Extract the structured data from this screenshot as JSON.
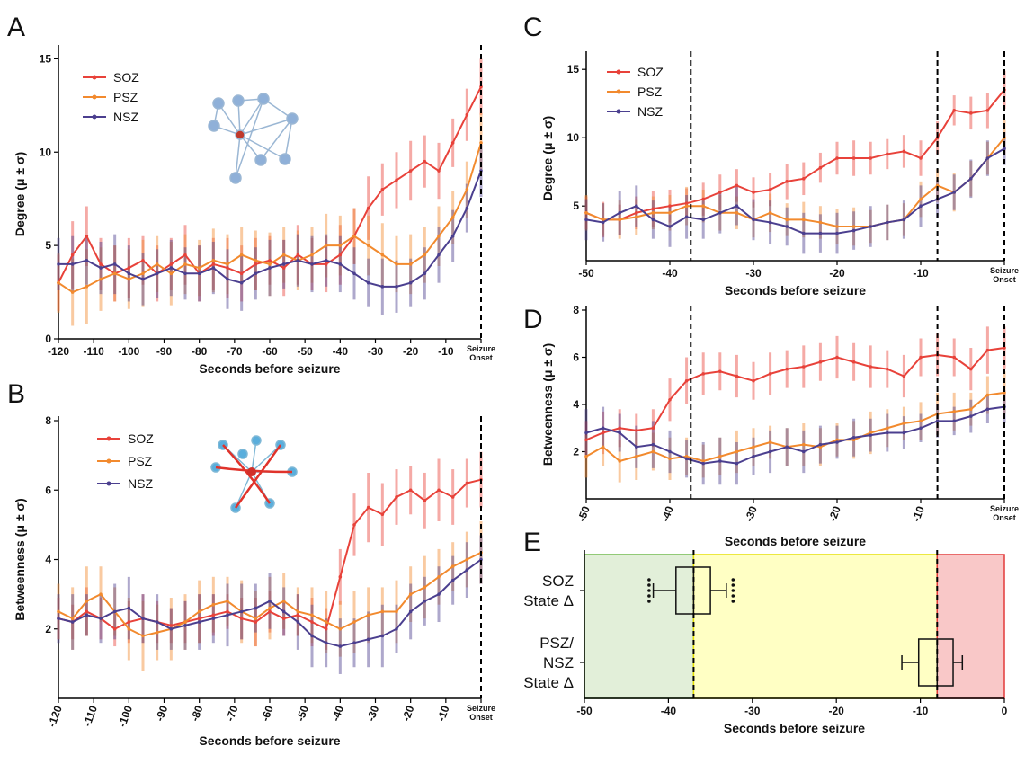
{
  "chart_data": [
    {
      "type": "line",
      "panel": "A",
      "y_label": "Degree (μ ± σ)",
      "x_label": "Seconds before seizure",
      "legend": "upper left",
      "x": [
        -120,
        -116,
        -112,
        -108,
        -104,
        -100,
        -96,
        -92,
        -88,
        -84,
        -80,
        -76,
        -72,
        -68,
        -64,
        -60,
        -56,
        -52,
        -48,
        -44,
        -40,
        -36,
        -32,
        -28,
        -24,
        -20,
        -16,
        -12,
        -8,
        -4,
        0
      ],
      "xlim": [
        -120,
        0
      ],
      "xticks": [
        -120,
        -110,
        -100,
        -90,
        -80,
        -70,
        -60,
        -50,
        -40,
        -30,
        -20,
        -10,
        {
          "value": 0,
          "label": [
            "Seizure",
            "Onset"
          ]
        }
      ],
      "ylim": [
        0,
        15.5
      ],
      "yticks": [
        0,
        5,
        10,
        15
      ],
      "vlines": [
        0
      ],
      "series": [
        {
          "name": "SOZ",
          "color": "#e8423a",
          "values": [
            3,
            4.5,
            5.5,
            4,
            3.5,
            3.8,
            4.2,
            3.5,
            4,
            4.5,
            3.5,
            4,
            3.8,
            3.5,
            4,
            4.2,
            3.8,
            4.5,
            4,
            4,
            4.5,
            5.5,
            7,
            8,
            8.5,
            9,
            9.5,
            9,
            10.5,
            12,
            13.5
          ],
          "errors": [
            1.5,
            1.8,
            1.6,
            1.4,
            1.5,
            1.6,
            1.3,
            1.5,
            1.4,
            1.6,
            1.5,
            1.4,
            1.6,
            1.5,
            1.4,
            1.3,
            1.5,
            1.6,
            1.4,
            1.5,
            1.6,
            1.5,
            1.7,
            1.4,
            1.5,
            1.6,
            1.4,
            1.5,
            1.3,
            1.4,
            1.5
          ]
        },
        {
          "name": "PSZ",
          "color": "#f28a2e",
          "values": [
            3,
            2.5,
            2.8,
            3.2,
            3.5,
            3.2,
            3.5,
            4,
            3.5,
            4,
            3.8,
            4.2,
            4,
            4.5,
            4.2,
            4,
            4.5,
            4.2,
            4.5,
            5,
            5,
            5.5,
            5,
            4.5,
            4,
            4,
            4.5,
            5.5,
            6.5,
            8,
            10.5
          ],
          "errors": [
            1.6,
            1.8,
            2,
            1.7,
            1.5,
            1.6,
            1.8,
            1.5,
            1.7,
            1.6,
            1.5,
            1.7,
            1.6,
            1.5,
            1.6,
            1.7,
            1.5,
            1.6,
            1.5,
            1.7,
            1.6,
            1.5,
            1.6,
            1.7,
            1.5,
            1.6,
            1.5,
            1.6,
            1.4,
            1.5,
            1.6
          ]
        },
        {
          "name": "NSZ",
          "color": "#4b3f8f",
          "values": [
            4,
            4,
            4.2,
            3.8,
            4,
            3.5,
            3.2,
            3.5,
            3.8,
            3.5,
            3.5,
            3.8,
            3.2,
            3,
            3.5,
            3.8,
            4,
            4.2,
            4,
            4.2,
            4,
            3.5,
            3,
            2.8,
            2.8,
            3,
            3.5,
            4.5,
            5.5,
            7,
            9
          ],
          "errors": [
            1.4,
            1.5,
            1.3,
            1.4,
            1.6,
            1.5,
            1.4,
            1.3,
            1.5,
            1.4,
            1.5,
            1.4,
            1.6,
            1.5,
            1.4,
            1.5,
            1.3,
            1.4,
            1.5,
            1.4,
            1.5,
            1.4,
            1.3,
            1.5,
            1.4,
            1.3,
            1.4,
            1.5,
            1.4,
            1.3,
            1.4
          ]
        }
      ]
    },
    {
      "type": "line",
      "panel": "B",
      "y_label": "Betweenness (μ ± σ)",
      "x_label": "Seconds before seizure",
      "legend": "upper left",
      "xtick_rotation": -70,
      "x": [
        -120,
        -116,
        -112,
        -108,
        -104,
        -100,
        -96,
        -92,
        -88,
        -84,
        -80,
        -76,
        -72,
        -68,
        -64,
        -60,
        -56,
        -52,
        -48,
        -44,
        -40,
        -36,
        -32,
        -28,
        -24,
        -20,
        -16,
        -12,
        -8,
        -4,
        0
      ],
      "xlim": [
        -120,
        0
      ],
      "xticks": [
        -120,
        -110,
        -100,
        -90,
        -80,
        -70,
        -60,
        -50,
        -40,
        -30,
        -20,
        -10,
        {
          "value": 0,
          "label": [
            "Seizure",
            "Onset"
          ]
        }
      ],
      "ylim": [
        0,
        8
      ],
      "yticks": [
        2,
        4,
        6,
        8
      ],
      "vlines": [
        0
      ],
      "series": [
        {
          "name": "SOZ",
          "color": "#e8423a",
          "values": [
            2.3,
            2.2,
            2.5,
            2.3,
            2,
            2.2,
            2.3,
            2.2,
            2.1,
            2.2,
            2.3,
            2.4,
            2.5,
            2.3,
            2.2,
            2.5,
            2.3,
            2.4,
            2.2,
            2,
            3.5,
            5,
            5.5,
            5.3,
            5.8,
            6,
            5.7,
            6,
            5.8,
            6.2,
            6.3
          ],
          "errors": [
            0.6,
            0.5,
            0.7,
            0.6,
            0.5,
            0.6,
            0.7,
            0.6,
            0.5,
            0.6,
            0.7,
            0.6,
            0.5,
            0.6,
            0.7,
            0.6,
            0.5,
            0.6,
            0.7,
            0.6,
            0.8,
            0.9,
            1,
            0.9,
            0.8,
            0.7,
            0.8,
            0.9,
            0.8,
            0.7,
            0.8
          ]
        },
        {
          "name": "PSZ",
          "color": "#f28a2e",
          "values": [
            2.5,
            2.3,
            2.8,
            3,
            2.5,
            2,
            1.8,
            1.9,
            2,
            2.2,
            2.5,
            2.7,
            2.8,
            2.5,
            2.3,
            2.6,
            2.8,
            2.5,
            2.4,
            2.2,
            2,
            2.2,
            2.4,
            2.5,
            2.5,
            3,
            3.2,
            3.5,
            3.8,
            4,
            4.2
          ],
          "errors": [
            0.8,
            0.9,
            1,
            0.8,
            0.7,
            0.9,
            1,
            0.8,
            0.9,
            0.8,
            0.9,
            0.8,
            0.7,
            0.9,
            0.8,
            0.9,
            0.8,
            0.7,
            0.8,
            0.9,
            0.8,
            0.9,
            0.8,
            0.7,
            0.9,
            0.8,
            0.9,
            0.8,
            0.7,
            0.8,
            0.9
          ]
        },
        {
          "name": "NSZ",
          "color": "#4b3f8f",
          "values": [
            2.3,
            2.2,
            2.4,
            2.3,
            2.5,
            2.6,
            2.3,
            2.2,
            2,
            2.1,
            2.2,
            2.3,
            2.4,
            2.5,
            2.6,
            2.8,
            2.5,
            2.2,
            1.8,
            1.6,
            1.5,
            1.6,
            1.7,
            1.8,
            2,
            2.5,
            2.8,
            3,
            3.4,
            3.7,
            4
          ],
          "errors": [
            0.7,
            0.8,
            0.6,
            0.7,
            0.8,
            0.9,
            0.7,
            0.8,
            0.6,
            0.7,
            0.8,
            0.7,
            0.9,
            0.8,
            0.7,
            0.8,
            0.7,
            0.8,
            0.9,
            0.7,
            0.8,
            0.7,
            0.8,
            0.9,
            0.7,
            0.8,
            0.7,
            0.8,
            0.7,
            0.8,
            0.7
          ]
        }
      ]
    },
    {
      "type": "line",
      "panel": "C",
      "y_label": "Degree (μ ± σ)",
      "x_label": "Seconds before seizure",
      "legend": "upper left",
      "x": [
        -50,
        -48,
        -46,
        -44,
        -42,
        -40,
        -38,
        -36,
        -34,
        -32,
        -30,
        -28,
        -26,
        -24,
        -22,
        -20,
        -18,
        -16,
        -14,
        -12,
        -10,
        -8,
        -6,
        -4,
        -2,
        0
      ],
      "xlim": [
        -50,
        0
      ],
      "xticks": [
        -50,
        -40,
        -30,
        -20,
        -10,
        {
          "value": 0,
          "label": [
            "Seizure",
            "Onset"
          ]
        }
      ],
      "ylim": [
        1,
        16
      ],
      "yticks": [
        5,
        10,
        15
      ],
      "vlines": [
        -37.5,
        -8,
        0
      ],
      "series": [
        {
          "name": "SOZ",
          "color": "#e8423a",
          "values": [
            4.5,
            4,
            4,
            4.5,
            4.8,
            5,
            5.2,
            5.5,
            6,
            6.5,
            6,
            6.2,
            6.8,
            7,
            7.8,
            8.5,
            8.5,
            8.5,
            8.8,
            9,
            8.5,
            10,
            12,
            11.8,
            12,
            13.5
          ],
          "errors": [
            1.2,
            1.3,
            1.1,
            1.2,
            1.3,
            1.2,
            1.1,
            1.2,
            1.3,
            1.2,
            1.1,
            1.2,
            1.3,
            1.2,
            1.1,
            1.2,
            1.3,
            1.2,
            1.1,
            1.2,
            1.3,
            1.2,
            1.1,
            1.2,
            1.3,
            1.4
          ]
        },
        {
          "name": "PSZ",
          "color": "#f28a2e",
          "values": [
            4.5,
            4,
            4,
            4.2,
            4.5,
            4.5,
            5,
            5,
            4.5,
            4.5,
            4,
            4.5,
            4,
            4,
            3.8,
            3.5,
            3.5,
            3.5,
            3.8,
            4,
            5.5,
            6.5,
            6,
            7,
            8.5,
            10
          ],
          "errors": [
            1.3,
            1.2,
            1.4,
            1.3,
            1.2,
            1.3,
            1.4,
            1.2,
            1.3,
            1.2,
            1.3,
            1.4,
            1.2,
            1.3,
            1.2,
            1.3,
            1.4,
            1.2,
            1.3,
            1.2,
            1.3,
            1.2,
            1.4,
            1.3,
            1.2,
            1.3
          ]
        },
        {
          "name": "NSZ",
          "color": "#4b3f8f",
          "values": [
            4,
            3.8,
            4.5,
            5,
            4,
            3.5,
            4.2,
            4,
            4.5,
            5,
            4,
            3.8,
            3.5,
            3,
            3,
            3,
            3.2,
            3.5,
            3.8,
            4,
            5,
            5.5,
            6,
            7,
            8.5,
            9.2
          ],
          "errors": [
            1.5,
            1.4,
            1.6,
            1.5,
            1.4,
            1.5,
            1.6,
            1.4,
            1.5,
            1.4,
            1.5,
            1.6,
            1.4,
            1.5,
            1.4,
            1.5,
            1.4,
            1.5,
            1.3,
            1.4,
            1.5,
            1.4,
            1.3,
            1.4,
            1.3,
            1.2
          ]
        }
      ]
    },
    {
      "type": "line",
      "panel": "D",
      "y_label": "Betweenness (μ ± σ)",
      "x_label": "Seconds before seizure",
      "xtick_rotation": -70,
      "x": [
        -50,
        -48,
        -46,
        -44,
        -42,
        -40,
        -38,
        -36,
        -34,
        -32,
        -30,
        -28,
        -26,
        -24,
        -22,
        -20,
        -18,
        -16,
        -14,
        -12,
        -10,
        -8,
        -6,
        -4,
        -2,
        0
      ],
      "xlim": [
        -50,
        0
      ],
      "xticks": [
        -50,
        -40,
        -30,
        -20,
        -10,
        {
          "value": 0,
          "label": [
            "Seizure",
            "Onset"
          ]
        }
      ],
      "ylim": [
        0,
        8
      ],
      "yticks": [
        2,
        4,
        6,
        8
      ],
      "vlines": [
        -37.5,
        -8,
        0
      ],
      "series": [
        {
          "name": "SOZ",
          "color": "#e8423a",
          "values": [
            2.5,
            2.8,
            3,
            2.9,
            3,
            4.2,
            5,
            5.3,
            5.4,
            5.2,
            5,
            5.3,
            5.5,
            5.6,
            5.8,
            6,
            5.8,
            5.6,
            5.5,
            5.2,
            6,
            6.1,
            6,
            5.5,
            6.3,
            6.4
          ],
          "errors": [
            0.8,
            0.9,
            0.8,
            0.7,
            0.8,
            0.9,
            1,
            0.9,
            0.8,
            0.9,
            0.8,
            0.9,
            0.8,
            0.9,
            0.8,
            0.9,
            0.8,
            0.9,
            0.8,
            0.9,
            0.8,
            0.9,
            0.8,
            0.9,
            1,
            0.9
          ]
        },
        {
          "name": "PSZ",
          "color": "#f28a2e",
          "values": [
            1.8,
            2.2,
            1.6,
            1.8,
            2,
            1.7,
            1.8,
            1.6,
            1.8,
            2,
            2.2,
            2.4,
            2.2,
            2.3,
            2.2,
            2.5,
            2.5,
            2.8,
            3,
            3.2,
            3.3,
            3.6,
            3.7,
            3.8,
            4.4,
            4.5
          ],
          "errors": [
            0.9,
            0.8,
            0.9,
            1,
            0.8,
            0.9,
            0.8,
            0.7,
            0.8,
            0.9,
            0.8,
            0.7,
            0.8,
            0.9,
            0.8,
            0.7,
            0.8,
            0.9,
            0.8,
            0.7,
            0.8,
            0.9,
            0.8,
            0.7,
            0.8,
            0.9
          ]
        },
        {
          "name": "NSZ",
          "color": "#4b3f8f",
          "values": [
            2.8,
            3,
            2.8,
            2.2,
            2.3,
            2,
            1.7,
            1.5,
            1.6,
            1.5,
            1.8,
            2,
            2.2,
            2,
            2.3,
            2.4,
            2.6,
            2.7,
            2.8,
            2.8,
            3,
            3.3,
            3.3,
            3.5,
            3.8,
            3.9
          ],
          "errors": [
            1,
            0.9,
            0.8,
            0.9,
            1,
            0.9,
            0.8,
            0.9,
            1,
            0.9,
            0.8,
            0.9,
            0.8,
            0.9,
            0.8,
            0.7,
            0.8,
            0.7,
            0.8,
            0.7,
            0.6,
            0.7,
            0.6,
            0.7,
            0.6,
            0.7
          ]
        }
      ]
    },
    {
      "type": "box",
      "panel": "E",
      "x_label": "Seconds before seizure",
      "categories": [
        [
          "SOZ",
          "State Δ"
        ],
        [
          "PSZ/",
          "NSZ",
          "State Δ"
        ]
      ],
      "xlim": [
        -50,
        0
      ],
      "xticks": [
        -50,
        -40,
        -30,
        -20,
        -10,
        0
      ],
      "vlines": [
        -37,
        -8
      ],
      "spans": [
        {
          "from": -50,
          "to": -37,
          "color": "#e2efd9"
        },
        {
          "from": -37,
          "to": -8,
          "color": "#ffffc4"
        },
        {
          "from": -8,
          "to": 0,
          "color": "#f9c8c8"
        }
      ],
      "boxes": [
        {
          "min": -41.8,
          "q1": -39.1,
          "median": -37,
          "q3": -35,
          "max": -33.1,
          "outliers": [
            -42.3,
            -42.3,
            -42.3,
            -42.3,
            -42.3,
            -32.3,
            -32.3,
            -32.3,
            -32.3,
            -32.3
          ]
        },
        {
          "min": -12.2,
          "q1": -10.2,
          "median": -8,
          "q3": -6.1,
          "max": -5,
          "outliers": []
        }
      ]
    }
  ]
}
